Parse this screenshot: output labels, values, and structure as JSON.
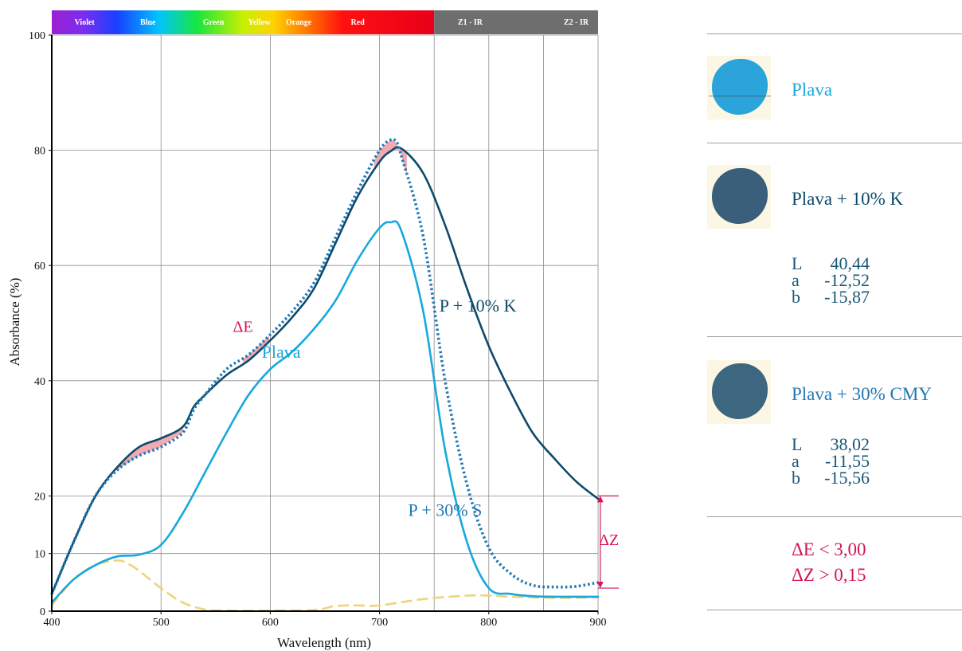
{
  "chart_data": {
    "type": "line",
    "xlabel": "Wavelength (nm)",
    "ylabel": "Absorbance (%)",
    "xlim": [
      400,
      900
    ],
    "ylim": [
      0,
      100
    ],
    "x_ticks": [
      400,
      500,
      600,
      700,
      800,
      900
    ],
    "y_ticks": [
      0,
      10,
      20,
      40,
      60,
      80,
      100
    ],
    "grid": true,
    "spectrum_bar": [
      "Violet",
      "Blue",
      "Green",
      "Yellow",
      "Orange",
      "Red",
      "Z1 - IR",
      "Z2 - IR"
    ],
    "series": [
      {
        "name": "P + 10% K",
        "color": "#0d4a6b",
        "style": "solid",
        "x": [
          400,
          420,
          440,
          460,
          480,
          500,
          520,
          530,
          540,
          560,
          580,
          600,
          620,
          640,
          660,
          680,
          700,
          710,
          720,
          740,
          760,
          780,
          800,
          820,
          840,
          860,
          880,
          900
        ],
        "y": [
          3,
          12,
          20,
          25,
          28.5,
          30,
          32,
          35.5,
          37.5,
          41,
          43.5,
          47,
          51,
          56,
          64,
          72,
          78,
          79.8,
          80.3,
          76,
          67,
          56,
          46,
          38,
          31,
          26.5,
          22.5,
          19.5
        ]
      },
      {
        "name": "P + 30% S",
        "color": "#1f78b4",
        "style": "dotted",
        "x": [
          400,
          420,
          440,
          460,
          480,
          500,
          520,
          530,
          540,
          560,
          580,
          600,
          620,
          640,
          660,
          680,
          700,
          710,
          715,
          720,
          740,
          760,
          780,
          800,
          820,
          840,
          860,
          880,
          900
        ],
        "y": [
          3,
          12,
          20,
          24.5,
          27,
          28.5,
          31,
          35,
          37.5,
          42,
          44.5,
          48,
          52,
          57,
          65,
          73,
          80,
          81.8,
          81.5,
          79,
          65,
          40,
          22,
          11,
          6.5,
          4.5,
          4.2,
          4.3,
          5
        ]
      },
      {
        "name": "Plava",
        "color": "#17a8dc",
        "style": "solid",
        "x": [
          400,
          420,
          440,
          460,
          480,
          500,
          520,
          540,
          560,
          580,
          600,
          620,
          640,
          660,
          680,
          700,
          710,
          720,
          740,
          760,
          780,
          800,
          820,
          840,
          860,
          880,
          900
        ],
        "y": [
          1.5,
          5.5,
          8,
          9.5,
          9.8,
          11.5,
          17,
          24,
          31,
          37.5,
          42,
          45,
          49,
          54,
          61,
          66.5,
          67.5,
          66,
          52,
          28,
          12,
          4,
          3,
          2.6,
          2.5,
          2.5,
          2.5
        ]
      },
      {
        "name": "",
        "color": "#f0d37a",
        "style": "dashed",
        "x": [
          400,
          420,
          440,
          460,
          470,
          480,
          500,
          520,
          540,
          560,
          600,
          640,
          660,
          680,
          700,
          740,
          780,
          800,
          820,
          860,
          900
        ],
        "y": [
          1,
          5.5,
          8,
          8.8,
          8.2,
          7,
          4,
          1.5,
          0.3,
          0.1,
          0.1,
          0.2,
          0.9,
          1,
          1,
          2.1,
          2.7,
          2.7,
          2.5,
          2.3,
          2.4
        ]
      }
    ],
    "annotations": [
      {
        "text": "P + 10% K",
        "x": 790,
        "y": 52
      },
      {
        "text": "Plava",
        "x": 610,
        "y": 44
      },
      {
        "text": "P + 30% S",
        "x": 760,
        "y": 16.5
      },
      {
        "text": "ΔE",
        "x": 575,
        "y": 48.5
      },
      {
        "text": "ΔZ",
        "x": 910,
        "y": 11.5
      }
    ],
    "delta_z_range": [
      4,
      20
    ],
    "delta_e_regions": [
      [
        460,
        520
      ],
      [
        575,
        600
      ],
      [
        695,
        725
      ]
    ]
  },
  "samples": [
    {
      "name": "Plava",
      "color": "#2aa4da",
      "name_color": "#17a8dc"
    },
    {
      "name": "Plava + 10% K",
      "color": "#3a5f7a",
      "name_color": "#0d4a6b",
      "lab": {
        "L_label": "L",
        "L": "40,44",
        "a_label": "a",
        "a": "-12,52",
        "b_label": "b",
        "b": "-15,87"
      }
    },
    {
      "name": "Plava + 30% CMY",
      "color": "#3d6781",
      "name_color": "#1f78b4",
      "lab": {
        "L_label": "L",
        "L": "38,02",
        "a_label": "a",
        "a": "-11,55",
        "b_label": "b",
        "b": "-15,56"
      }
    }
  ],
  "conclusion": {
    "delta_e": "ΔE < 3,00",
    "delta_z": "ΔZ > 0,15"
  }
}
